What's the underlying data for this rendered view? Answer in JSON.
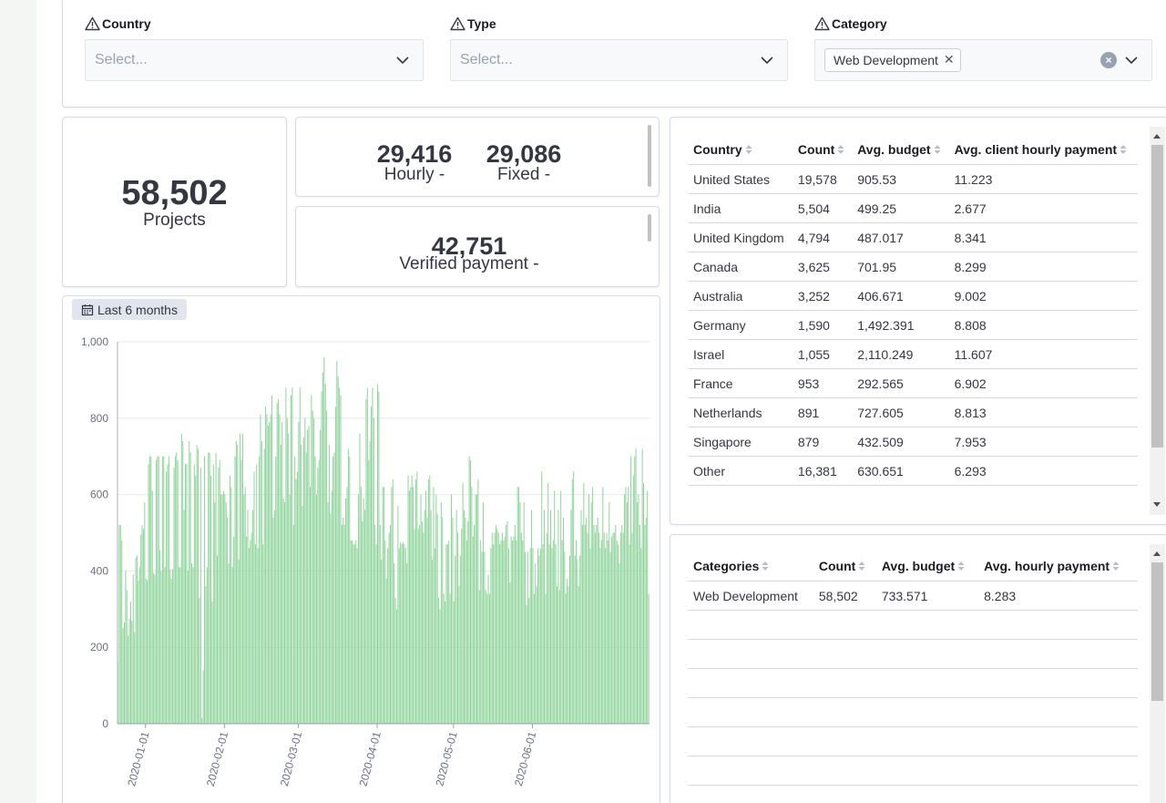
{
  "filters": {
    "country": {
      "label": "Country",
      "placeholder": "Select..."
    },
    "type": {
      "label": "Type",
      "placeholder": "Select..."
    },
    "category": {
      "label": "Category",
      "selected": "Web Development",
      "remove": "✕"
    }
  },
  "metrics": {
    "projects": {
      "value": "58,502",
      "label": "Projects"
    },
    "hourly": {
      "value": "29,416",
      "label": "Hourly -"
    },
    "fixed": {
      "value": "29,086",
      "label": "Fixed -"
    },
    "verified": {
      "value": "42,751",
      "label": "Verified payment -"
    }
  },
  "chart_badge": "Last 6 months",
  "chart_data": {
    "type": "bar",
    "ylim": [
      0,
      1000
    ],
    "y_ticks": [
      "0",
      "200",
      "400",
      "600",
      "800",
      "1,000"
    ],
    "x_tick_labels": [
      "2020-01-01",
      "2020-02-01",
      "2020-03-01",
      "2020-04-01",
      "2020-05-01",
      "2020-06-01"
    ],
    "x_start": "2019-12-21",
    "color": "#8fd49b",
    "values": [
      160,
      520,
      520,
      480,
      250,
      265,
      400,
      350,
      230,
      275,
      320,
      270,
      390,
      240,
      435,
      440,
      375,
      410,
      495,
      520,
      510,
      580,
      380,
      375,
      680,
      700,
      700,
      610,
      395,
      390,
      690,
      700,
      700,
      455,
      400,
      700,
      700,
      410,
      660,
      680,
      700,
      405,
      380,
      405,
      670,
      700,
      710,
      690,
      410,
      410,
      760,
      740,
      560,
      680,
      680,
      400,
      740,
      710,
      420,
      410,
      680,
      650,
      730,
      720,
      330,
      670,
      15,
      140,
      700,
      360,
      410,
      710,
      710,
      650,
      320,
      680,
      580,
      710,
      440,
      670,
      690,
      600,
      600,
      610,
      600,
      580,
      540,
      420,
      650,
      620,
      410,
      490,
      700,
      740,
      730,
      430,
      760,
      690,
      760,
      600,
      620,
      490,
      560,
      460,
      480,
      500,
      560,
      660,
      470,
      680,
      460,
      700,
      810,
      740,
      470,
      720,
      830,
      810,
      780,
      790,
      810,
      860,
      540,
      560,
      700,
      840,
      850,
      810,
      730,
      790,
      590,
      580,
      880,
      800,
      760,
      600,
      860,
      880,
      520,
      700,
      640,
      660,
      790,
      880,
      730,
      570,
      750,
      800,
      710,
      770,
      780,
      620,
      860,
      820,
      800,
      700,
      600,
      670,
      690,
      770,
      870,
      920,
      960,
      890,
      820,
      580,
      730,
      550,
      610,
      700,
      710,
      830,
      950,
      910,
      880,
      860,
      520,
      540,
      520,
      590,
      620,
      720,
      700,
      480,
      480,
      470,
      470,
      480,
      460,
      600,
      760,
      620,
      530,
      590,
      560,
      850,
      880,
      690,
      740,
      830,
      880,
      800,
      520,
      470,
      890,
      870,
      520,
      430,
      620,
      620,
      480,
      380,
      460,
      500,
      520,
      620,
      640,
      420,
      330,
      300,
      570,
      460,
      475,
      470,
      475,
      470,
      460,
      420,
      650,
      610,
      620,
      650,
      620,
      510,
      640,
      660,
      510,
      520,
      600,
      530,
      500,
      560,
      610,
      540,
      640,
      650,
      560,
      430,
      620,
      460,
      600,
      550,
      330,
      300,
      580,
      540,
      340,
      320,
      470,
      470,
      480,
      340,
      600,
      540,
      320,
      440,
      560,
      500,
      360,
      440,
      510,
      630,
      560,
      540,
      480,
      530,
      700,
      690,
      620,
      490,
      520,
      600,
      600,
      640,
      350,
      480,
      450,
      580,
      450,
      350,
      340,
      390,
      340,
      460,
      500,
      470,
      500,
      520,
      510,
      500,
      470,
      480,
      500,
      480,
      490,
      520,
      530,
      460,
      370,
      490,
      480,
      490,
      520,
      480,
      620,
      620,
      580,
      500,
      480,
      580,
      450,
      310,
      450,
      330,
      460,
      560,
      460,
      340,
      420,
      360,
      460,
      440,
      460,
      660,
      470,
      560,
      340,
      500,
      630,
      470,
      560,
      460,
      480,
      610,
      470,
      360,
      560,
      350,
      610,
      480,
      540,
      450,
      340,
      380,
      360,
      440,
      560,
      640,
      660,
      440,
      480,
      430,
      360,
      440,
      560,
      520,
      630,
      520,
      540,
      500,
      600,
      460,
      580,
      620,
      520,
      500,
      520,
      540,
      500,
      460,
      480,
      620,
      500,
      460,
      500,
      480,
      580,
      450,
      490,
      500,
      500,
      520,
      480,
      470,
      420,
      500,
      520,
      500,
      600,
      620,
      580,
      620,
      470,
      700,
      500,
      650,
      700,
      720,
      580,
      600,
      520,
      460,
      720,
      630,
      520,
      540,
      610,
      340
    ]
  },
  "country_table": {
    "headers": [
      "Country",
      "Count",
      "Avg. budget",
      "Avg. client hourly payment"
    ],
    "rows": [
      [
        "United States",
        "19,578",
        "905.53",
        "11.223"
      ],
      [
        "India",
        "5,504",
        "499.25",
        "2.677"
      ],
      [
        "United Kingdom",
        "4,794",
        "487.017",
        "8.341"
      ],
      [
        "Canada",
        "3,625",
        "701.95",
        "8.299"
      ],
      [
        "Australia",
        "3,252",
        "406.671",
        "9.002"
      ],
      [
        "Germany",
        "1,590",
        "1,492.391",
        "8.808"
      ],
      [
        "Israel",
        "1,055",
        "2,110.249",
        "11.607"
      ],
      [
        "France",
        "953",
        "292.565",
        "6.902"
      ],
      [
        "Netherlands",
        "891",
        "727.605",
        "8.813"
      ],
      [
        "Singapore",
        "879",
        "432.509",
        "7.953"
      ],
      [
        "Other",
        "16,381",
        "630.651",
        "6.293"
      ]
    ]
  },
  "category_table": {
    "headers": [
      "Categories",
      "Count",
      "Avg. budget",
      "Avg. hourly payment"
    ],
    "rows": [
      [
        "Web Development",
        "58,502",
        "733.571",
        "8.283"
      ]
    ]
  }
}
